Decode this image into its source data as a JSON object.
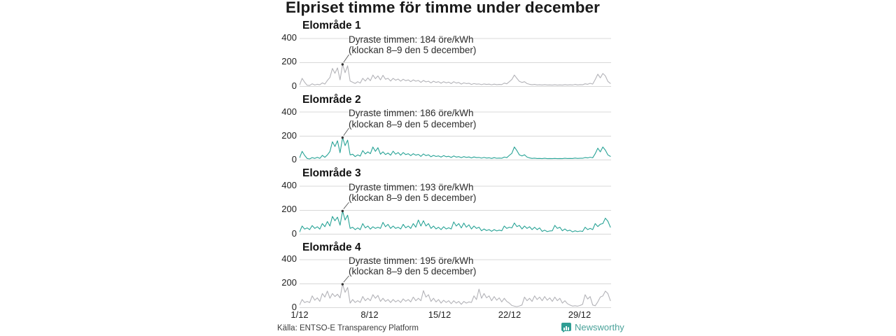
{
  "title": "Elpriset timme för timme under december",
  "source": "Källa: ENTSO-E Transparency Platform",
  "branding": {
    "name": "Newsworthy",
    "icon": "bar-chart-icon",
    "color": "#2f9e94"
  },
  "colors": {
    "teal": "#28a396",
    "gray": "#b3b3b8",
    "grid": "#d8d8d8",
    "annotation_marker": "#333333"
  },
  "axis": {
    "y_ticks": [
      "400",
      "200",
      "0"
    ],
    "y_min": 0,
    "y_max": 400,
    "x_ticks": [
      "1/12",
      "8/12",
      "15/12",
      "22/12",
      "29/12"
    ],
    "x_domain": "1/12–31/12",
    "grid": "horizontal-only"
  },
  "chart_data": [
    {
      "type": "line",
      "title": "Elområde 1",
      "unit": "öre/kWh",
      "line_color": "#b3b3b8",
      "samples_per_day": 4,
      "annotation": {
        "line1": "Dyraste timmen: 184 öre/kWh",
        "line2": "(klockan 8–9 den 5 december)",
        "peak_value": 184,
        "peak_time": "klockan 8–9 den 5 december"
      },
      "values": [
        12,
        68,
        35,
        10,
        8,
        22,
        12,
        18,
        14,
        30,
        20,
        50,
        75,
        150,
        110,
        155,
        55,
        184,
        115,
        172,
        45,
        35,
        25,
        40,
        28,
        68,
        45,
        72,
        48,
        95,
        65,
        88,
        55,
        93,
        60,
        68,
        45,
        68,
        52,
        62,
        44,
        60,
        48,
        55,
        40,
        55,
        44,
        50,
        34,
        50,
        38,
        44,
        30,
        44,
        34,
        40,
        27,
        40,
        30,
        36,
        24,
        40,
        28,
        33,
        20,
        30,
        24,
        27,
        17,
        24,
        19,
        21,
        15,
        21,
        17,
        19,
        14,
        19,
        15,
        17,
        16,
        28,
        22,
        40,
        58,
        95,
        68,
        42,
        33,
        40,
        24,
        18,
        14,
        17,
        13,
        14,
        12,
        15,
        12,
        13,
        11,
        14,
        11,
        13,
        11,
        15,
        12,
        14,
        12,
        17,
        13,
        15,
        14,
        22,
        18,
        26,
        20,
        58,
        102,
        72,
        108,
        88,
        42,
        25
      ]
    },
    {
      "type": "line",
      "title": "Elområde 2",
      "unit": "öre/kWh",
      "line_color": "#28a396",
      "samples_per_day": 4,
      "annotation": {
        "line1": "Dyraste timmen: 186 öre/kWh",
        "line2": "(klockan 8–9 den 5 december)",
        "peak_value": 186,
        "peak_time": "klockan 8–9 den 5 december"
      },
      "values": [
        18,
        72,
        38,
        12,
        9,
        20,
        13,
        22,
        13,
        38,
        22,
        42,
        70,
        152,
        112,
        160,
        60,
        186,
        120,
        165,
        42,
        48,
        28,
        42,
        32,
        78,
        50,
        68,
        52,
        108,
        72,
        102,
        48,
        68,
        45,
        58,
        40,
        73,
        48,
        62,
        40,
        62,
        45,
        52,
        36,
        52,
        40,
        47,
        30,
        50,
        36,
        43,
        27,
        38,
        29,
        34,
        24,
        36,
        27,
        31,
        21,
        33,
        24,
        28,
        19,
        28,
        21,
        25,
        17,
        25,
        19,
        21,
        15,
        21,
        16,
        18,
        13,
        19,
        14,
        16,
        14,
        24,
        19,
        38,
        55,
        108,
        78,
        42,
        33,
        43,
        24,
        17,
        13,
        15,
        12,
        13,
        11,
        14,
        11,
        12,
        11,
        13,
        11,
        12,
        11,
        14,
        12,
        13,
        12,
        16,
        13,
        14,
        14,
        20,
        17,
        23,
        18,
        52,
        98,
        68,
        108,
        82,
        42,
        30
      ]
    },
    {
      "type": "line",
      "title": "Elområde 3",
      "unit": "öre/kWh",
      "line_color": "#28a396",
      "samples_per_day": 4,
      "annotation": {
        "line1": "Dyraste timmen: 193 öre/kWh",
        "line2": "(klockan 8–9 den 5 december)",
        "peak_value": 193,
        "peak_time": "klockan 8–9 den 5 december"
      },
      "values": [
        18,
        68,
        42,
        52,
        38,
        72,
        48,
        62,
        42,
        88,
        62,
        105,
        68,
        148,
        112,
        142,
        75,
        193,
        118,
        158,
        48,
        58,
        38,
        52,
        38,
        88,
        52,
        68,
        42,
        62,
        48,
        58,
        48,
        98,
        62,
        82,
        48,
        68,
        48,
        58,
        43,
        82,
        53,
        68,
        48,
        88,
        58,
        118,
        68,
        112,
        68,
        88,
        48,
        68,
        44,
        58,
        38,
        62,
        43,
        53,
        43,
        102,
        68,
        88,
        52,
        92,
        58,
        78,
        43,
        68,
        48,
        58,
        28,
        43,
        30,
        38,
        24,
        38,
        27,
        33,
        28,
        68,
        48,
        58,
        52,
        93,
        63,
        73,
        43,
        68,
        48,
        62,
        38,
        58,
        38,
        52,
        23,
        33,
        21,
        27,
        28,
        73,
        48,
        58,
        28,
        43,
        27,
        33,
        19,
        28,
        21,
        26,
        23,
        58,
        38,
        48,
        38,
        88,
        63,
        83,
        88,
        133,
        108,
        58
      ]
    },
    {
      "type": "line",
      "title": "Elområde 4",
      "unit": "öre/kWh",
      "line_color": "#b3b3b8",
      "samples_per_day": 4,
      "annotation": {
        "line1": "Dyraste timmen: 195 öre/kWh",
        "line2": "(klockan 8–9 den 5 december)",
        "peak_value": 195,
        "peak_time": "klockan 8–9 den 5 december"
      },
      "values": [
        22,
        68,
        42,
        52,
        42,
        98,
        62,
        82,
        52,
        118,
        88,
        138,
        78,
        118,
        92,
        112,
        82,
        195,
        128,
        168,
        38,
        68,
        43,
        58,
        43,
        93,
        58,
        78,
        58,
        108,
        78,
        102,
        52,
        78,
        52,
        68,
        43,
        68,
        48,
        62,
        43,
        73,
        53,
        68,
        48,
        88,
        58,
        78,
        58,
        142,
        88,
        108,
        52,
        78,
        48,
        68,
        38,
        62,
        43,
        58,
        33,
        58,
        38,
        52,
        28,
        52,
        38,
        48,
        43,
        98,
        68,
        155,
        78,
        118,
        82,
        98,
        58,
        92,
        62,
        82,
        48,
        78,
        52,
        38,
        18,
        12,
        9,
        14,
        22,
        88,
        58,
        78,
        52,
        98,
        68,
        88,
        58,
        92,
        62,
        82,
        52,
        88,
        58,
        78,
        38,
        58,
        33,
        22,
        13,
        16,
        12,
        18,
        28,
        108,
        72,
        92,
        22,
        16,
        48,
        88,
        98,
        138,
        118,
        58
      ]
    }
  ]
}
